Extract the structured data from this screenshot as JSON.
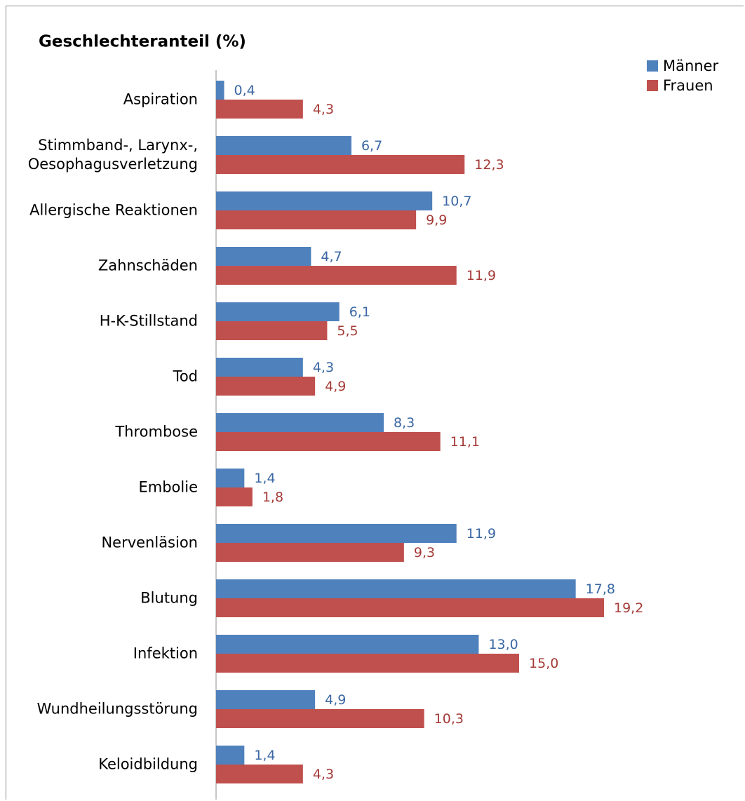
{
  "chart_data": {
    "type": "bar",
    "orientation": "horizontal",
    "title": "Geschlechteranteil (%)",
    "categories": [
      "Aspiration",
      "Stimmband-, Larynx-,\nOesophagusverletzung",
      "Allergische Reaktionen",
      "Zahnschäden",
      "H-K-Stillstand",
      "Tod",
      "Thrombose",
      "Embolie",
      "Nervenläsion",
      "Blutung",
      "Infektion",
      "Wundheilungsstörung",
      "Keloidbildung"
    ],
    "series": [
      {
        "name": "Männer",
        "color": "#4f81bd",
        "values": [
          0.4,
          6.7,
          10.7,
          4.7,
          6.1,
          4.3,
          8.3,
          1.4,
          11.9,
          17.8,
          13.0,
          4.9,
          1.4
        ],
        "value_labels": [
          "0,4",
          "6,7",
          "10,7",
          "4,7",
          "6,1",
          "4,3",
          "8,3",
          "1,4",
          "11,9",
          "17,8",
          "13,0",
          "4,9",
          "1,4"
        ]
      },
      {
        "name": "Frauen",
        "color": "#c0504d",
        "values": [
          4.3,
          12.3,
          9.9,
          11.9,
          5.5,
          4.9,
          11.1,
          1.8,
          9.3,
          19.2,
          15.0,
          10.3,
          4.3
        ],
        "value_labels": [
          "4,3",
          "12,3",
          "9,9",
          "11,9",
          "5,5",
          "4,9",
          "11,1",
          "1,8",
          "9,3",
          "19,2",
          "15,0",
          "10,3",
          "4,3"
        ]
      }
    ],
    "legend": "top-right"
  }
}
